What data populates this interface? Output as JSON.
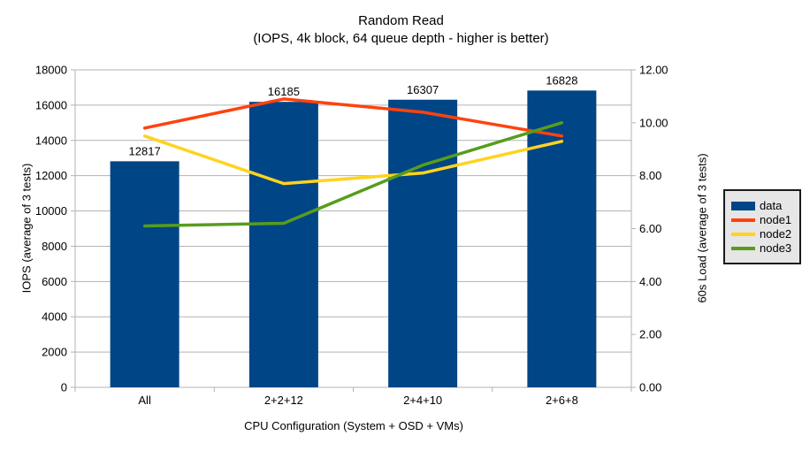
{
  "title": {
    "line1": "Random Read",
    "line2": "(IOPS, 4k block, 64 queue depth - higher is better)"
  },
  "chart_data": {
    "type": "bar",
    "subtype": "bar-with-lines",
    "categories": [
      "All",
      "2+2+12",
      "2+4+10",
      "2+6+8"
    ],
    "bar_series": {
      "name": "data",
      "axis": "left",
      "values": [
        12817,
        16185,
        16307,
        16828
      ],
      "value_labels": [
        "12817",
        "16185",
        "16307",
        "16828"
      ],
      "color": "#004586"
    },
    "line_series": [
      {
        "name": "node1",
        "axis": "right",
        "values": [
          9.8,
          10.9,
          10.4,
          9.5
        ],
        "color": "#FF420E"
      },
      {
        "name": "node2",
        "axis": "right",
        "values": [
          9.5,
          7.7,
          8.1,
          9.3
        ],
        "color": "#FFD320"
      },
      {
        "name": "node3",
        "axis": "right",
        "values": [
          6.1,
          6.2,
          8.4,
          10.0
        ],
        "color": "#579D1C"
      }
    ],
    "left_axis": {
      "title": "IOPS (average of 3 tests)",
      "min": 0,
      "max": 18000,
      "tick_values": [
        0,
        2000,
        4000,
        6000,
        8000,
        10000,
        12000,
        14000,
        16000,
        18000
      ],
      "tick_labels": [
        "0",
        "2000",
        "4000",
        "6000",
        "8000",
        "10000",
        "12000",
        "14000",
        "16000",
        "18000"
      ]
    },
    "right_axis": {
      "title": "60s Load (average of 3 tests)",
      "min": 0,
      "max": 12,
      "tick_values": [
        0,
        2,
        4,
        6,
        8,
        10,
        12
      ],
      "tick_labels": [
        "0.00",
        "2.00",
        "4.00",
        "6.00",
        "8.00",
        "10.00",
        "12.00"
      ]
    },
    "x_axis": {
      "title": "CPU Configuration (System + OSD + VMs)"
    },
    "grid": "horizontal",
    "grid_color": "#B3B3B3",
    "axis_color": "#B3B3B3",
    "legend_position": "right"
  },
  "legend": {
    "items": [
      {
        "label": "data",
        "color": "#004586",
        "type": "bar"
      },
      {
        "label": "node1",
        "color": "#FF420E",
        "type": "line"
      },
      {
        "label": "node2",
        "color": "#FFD320",
        "type": "line"
      },
      {
        "label": "node3",
        "color": "#579D1C",
        "type": "line"
      }
    ]
  }
}
